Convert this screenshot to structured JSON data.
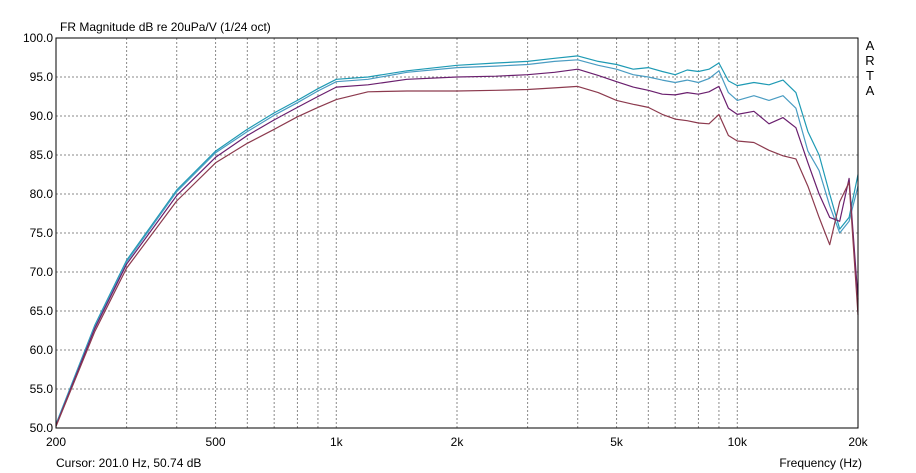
{
  "chart_data": {
    "type": "line",
    "title": "FR Magnitude dB re 20uPa/V (1/24 oct)",
    "side_label": "ARTA",
    "cursor_readout": "Cursor: 201.0 Hz, 50.74 dB",
    "xlabel": "Frequency (Hz)",
    "ylabel": "",
    "x_scale": "log",
    "xlim": [
      200,
      20000
    ],
    "ylim": [
      50,
      100
    ],
    "grid": true,
    "x_ticks": [
      {
        "value": 200,
        "label": "200"
      },
      {
        "value": 500,
        "label": "500"
      },
      {
        "value": 1000,
        "label": "1k"
      },
      {
        "value": 2000,
        "label": "2k"
      },
      {
        "value": 5000,
        "label": "5k"
      },
      {
        "value": 10000,
        "label": "10k"
      },
      {
        "value": 20000,
        "label": "20k"
      }
    ],
    "y_ticks": [
      {
        "value": 50,
        "label": "50.0"
      },
      {
        "value": 55,
        "label": "55.0"
      },
      {
        "value": 60,
        "label": "60.0"
      },
      {
        "value": 65,
        "label": "65.0"
      },
      {
        "value": 70,
        "label": "70.0"
      },
      {
        "value": 75,
        "label": "75.0"
      },
      {
        "value": 80,
        "label": "80.0"
      },
      {
        "value": 85,
        "label": "85.0"
      },
      {
        "value": 90,
        "label": "90.0"
      },
      {
        "value": 95,
        "label": "95.0"
      },
      {
        "value": 100,
        "label": "100.0"
      }
    ],
    "series": [
      {
        "color": "#1e9ab4",
        "x": [
          200,
          250,
          300,
          400,
          500,
          600,
          700,
          800,
          900,
          1000,
          1200,
          1500,
          2000,
          2500,
          3000,
          3500,
          4000,
          4500,
          5000,
          5500,
          6000,
          6500,
          7000,
          7500,
          8000,
          8500,
          9000,
          9500,
          10000,
          11000,
          12000,
          13000,
          14000,
          15000,
          16000,
          17000,
          18000,
          19000,
          20000
        ],
        "y": [
          50.5,
          63.2,
          71.5,
          80.5,
          85.5,
          88.3,
          90.4,
          92.0,
          93.5,
          94.7,
          95.0,
          95.8,
          96.5,
          96.8,
          97.0,
          97.4,
          97.7,
          97.0,
          96.6,
          96.0,
          96.2,
          95.7,
          95.3,
          95.9,
          95.7,
          96.0,
          96.8,
          94.5,
          93.9,
          94.3,
          94.0,
          94.6,
          93.0,
          88.0,
          85.0,
          80.0,
          75.5,
          77.0,
          82.5
        ]
      },
      {
        "color": "#4a9cc2",
        "x": [
          200,
          250,
          300,
          400,
          500,
          600,
          700,
          800,
          900,
          1000,
          1200,
          1500,
          2000,
          2500,
          3000,
          3500,
          4000,
          4500,
          5000,
          5500,
          6000,
          6500,
          7000,
          7500,
          8000,
          8500,
          9000,
          9500,
          10000,
          11000,
          12000,
          13000,
          14000,
          15000,
          16000,
          17000,
          18000,
          19000,
          20000
        ],
        "y": [
          50.4,
          63.0,
          71.3,
          80.3,
          85.3,
          88.0,
          90.1,
          91.7,
          93.2,
          94.4,
          94.7,
          95.6,
          96.2,
          96.4,
          96.6,
          97.0,
          97.2,
          96.5,
          96.0,
          95.3,
          95.0,
          94.6,
          94.3,
          94.6,
          94.3,
          94.8,
          95.8,
          93.0,
          92.0,
          92.6,
          92.0,
          92.6,
          91.0,
          85.5,
          83.0,
          78.5,
          75.0,
          76.5,
          81.0
        ]
      },
      {
        "color": "#6a1f6e",
        "x": [
          200,
          250,
          300,
          400,
          500,
          600,
          700,
          800,
          900,
          1000,
          1200,
          1500,
          2000,
          2500,
          3000,
          3500,
          4000,
          4500,
          5000,
          5500,
          6000,
          6500,
          7000,
          7500,
          8000,
          8500,
          9000,
          9500,
          10000,
          11000,
          12000,
          13000,
          14000,
          15000,
          16000,
          17000,
          18000,
          19000,
          20000
        ],
        "y": [
          50.3,
          62.8,
          71.0,
          79.8,
          84.7,
          87.5,
          89.5,
          91.1,
          92.5,
          93.7,
          94.0,
          94.7,
          95.0,
          95.1,
          95.3,
          95.6,
          96.0,
          95.2,
          94.4,
          93.7,
          93.3,
          92.8,
          92.7,
          93.0,
          92.8,
          93.1,
          93.8,
          91.0,
          90.2,
          90.6,
          89.0,
          89.8,
          88.5,
          84.0,
          80.0,
          77.0,
          76.5,
          82.0,
          66.5
        ]
      },
      {
        "color": "#8c3a4e",
        "x": [
          200,
          250,
          300,
          400,
          500,
          600,
          700,
          800,
          900,
          1000,
          1200,
          1500,
          2000,
          2500,
          3000,
          3500,
          4000,
          4500,
          5000,
          5500,
          6000,
          6500,
          7000,
          7500,
          8000,
          8500,
          9000,
          9500,
          10000,
          11000,
          12000,
          13000,
          14000,
          15000,
          16000,
          17000,
          18000,
          19000,
          20000
        ],
        "y": [
          50.2,
          62.4,
          70.5,
          79.1,
          84.0,
          86.5,
          88.3,
          89.9,
          91.1,
          92.1,
          93.1,
          93.2,
          93.2,
          93.3,
          93.4,
          93.6,
          93.8,
          93.0,
          92.0,
          91.5,
          91.1,
          90.2,
          89.6,
          89.4,
          89.1,
          89.0,
          90.2,
          87.5,
          86.8,
          86.6,
          85.6,
          84.9,
          84.5,
          81.0,
          77.0,
          73.5,
          79.0,
          81.5,
          64.5
        ]
      }
    ]
  }
}
